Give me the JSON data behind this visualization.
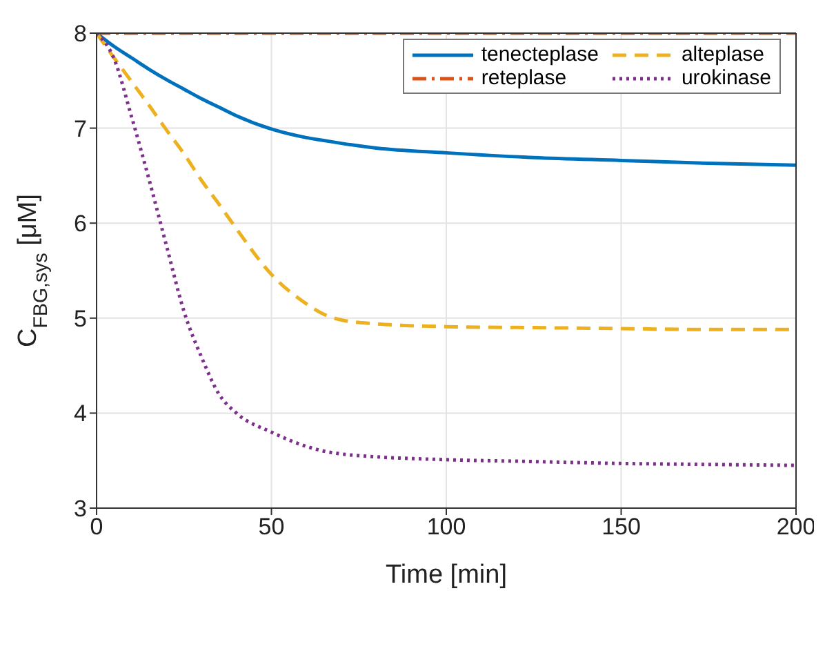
{
  "chart_data": {
    "type": "line",
    "xlabel": "Time [min]",
    "ylabel": "C$_{FBG,sys}$ [μM]",
    "x": [
      0,
      5,
      10,
      15,
      20,
      25,
      30,
      35,
      40,
      50,
      60,
      65,
      70,
      80,
      100,
      125,
      150,
      175,
      200
    ],
    "series": [
      {
        "name": "tenecteplase",
        "color": "#0072bd",
        "line_style": "solid",
        "values": [
          8,
          7.86,
          7.74,
          7.62,
          7.51,
          7.41,
          7.31,
          7.22,
          7.13,
          6.99,
          6.9,
          6.87,
          6.84,
          6.79,
          6.74,
          6.69,
          6.66,
          6.63,
          6.61
        ]
      },
      {
        "name": "reteplase",
        "color": "#d95319",
        "line_style": "dashdot",
        "values": [
          8,
          8,
          8,
          8,
          8,
          8,
          8,
          8,
          8,
          8,
          8,
          8,
          8,
          8,
          8,
          8,
          8,
          8,
          8
        ]
      },
      {
        "name": "alteplase",
        "color": "#edb120",
        "line_style": "dashed",
        "values": [
          8,
          7.74,
          7.49,
          7.24,
          6.98,
          6.73,
          6.45,
          6.2,
          5.94,
          5.46,
          5.15,
          5.04,
          4.98,
          4.94,
          4.91,
          4.9,
          4.89,
          4.88,
          4.88
        ]
      },
      {
        "name": "urokinase",
        "color": "#7e2f8e",
        "line_style": "dotted",
        "values": [
          8,
          7.73,
          7.12,
          6.46,
          5.76,
          5.07,
          4.59,
          4.2,
          4.0,
          3.8,
          3.65,
          3.6,
          3.57,
          3.54,
          3.51,
          3.49,
          3.47,
          3.46,
          3.45
        ]
      }
    ],
    "xlim": [
      0,
      200
    ],
    "xticks": [
      0,
      50,
      100,
      150,
      200
    ],
    "ylim": [
      3,
      8
    ],
    "yticks": [
      3,
      4,
      5,
      6,
      7,
      8
    ],
    "grid": true,
    "legend": "top right",
    "marker": "none"
  }
}
